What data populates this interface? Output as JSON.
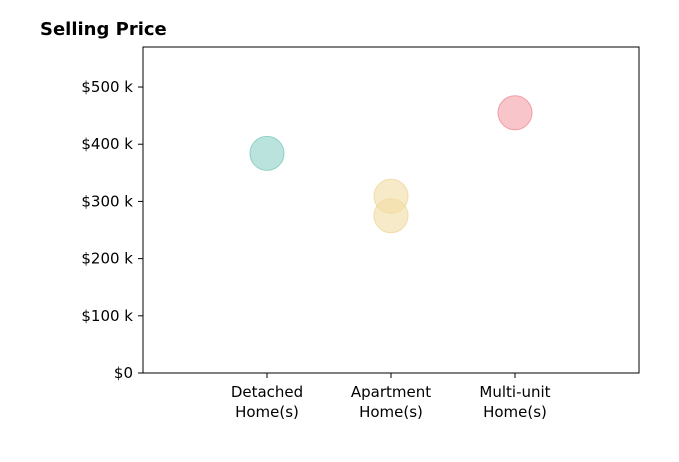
{
  "chart_data": {
    "type": "scatter",
    "title": "Selling Price",
    "xlabel": "",
    "ylabel": "",
    "categories": [
      "Detached Home(s)",
      "Apartment Home(s)",
      "Multi-unit Home(s)"
    ],
    "category_lines": [
      [
        "Detached",
        "Home(s)"
      ],
      [
        "Apartment",
        "Home(s)"
      ],
      [
        "Multi-unit",
        "Home(s)"
      ]
    ],
    "ylim": [
      0,
      570000
    ],
    "yticks": [
      0,
      100000,
      200000,
      300000,
      400000,
      500000
    ],
    "ytick_labels": [
      "$0",
      "$100 k",
      "$200 k",
      "$300 k",
      "$400 k",
      "$500 k"
    ],
    "grid": false,
    "points": [
      {
        "category": "Detached Home(s)",
        "value": 384000,
        "color": "#8ed1c6"
      },
      {
        "category": "Apartment Home(s)",
        "value": 309000,
        "color": "#f2dca5"
      },
      {
        "category": "Apartment Home(s)",
        "value": 275000,
        "color": "#f2dca5"
      },
      {
        "category": "Multi-unit Home(s)",
        "value": 455000,
        "color": "#f29ea6"
      }
    ]
  }
}
